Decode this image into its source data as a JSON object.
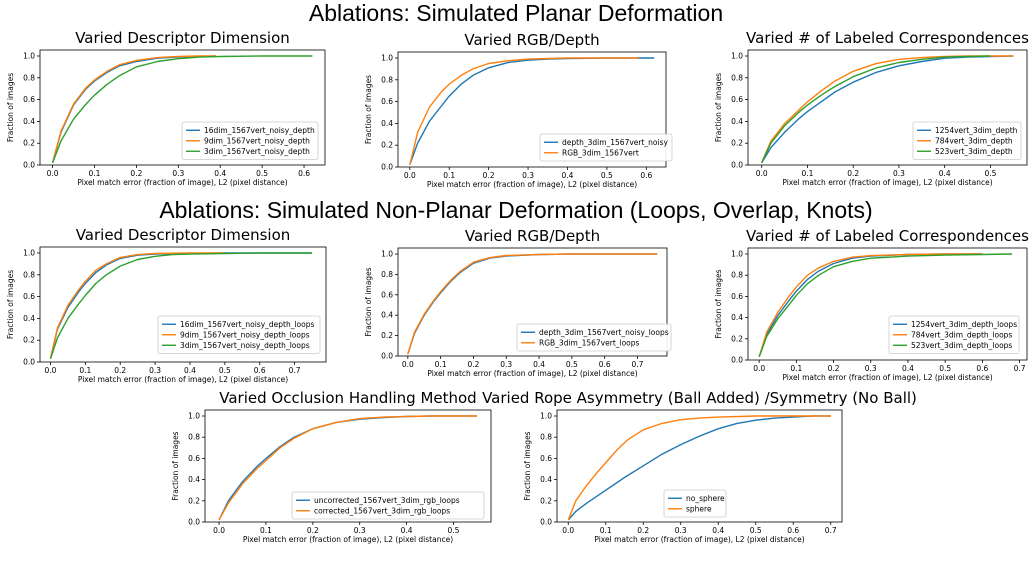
{
  "section_titles": [
    "Ablations: Simulated Planar Deformation",
    "Ablations: Simulated Non-Planar Deformation (Loops, Overlap, Knots)"
  ],
  "colors": {
    "blue": "#1f77b4",
    "orange": "#ff7f0e",
    "green": "#2ca02c"
  },
  "chart_data": [
    {
      "type": "line",
      "title": "Varied Descriptor Dimension",
      "xlabel": "Pixel match error (fraction of image), L2 (pixel distance)",
      "ylabel": "Fraction of images",
      "xlim": [
        -0.03,
        0.65
      ],
      "ylim": [
        0,
        1.0
      ],
      "xticks": [
        0.0,
        0.1,
        0.2,
        0.3,
        0.4,
        0.5,
        0.6
      ],
      "yticks": [
        0.0,
        0.2,
        0.4,
        0.6,
        0.8,
        1.0
      ],
      "legend": "lower-right",
      "series": [
        {
          "name": "16dim_1567vert_noisy_depth",
          "color": "blue",
          "x": [
            0,
            0.02,
            0.05,
            0.08,
            0.1,
            0.13,
            0.16,
            0.2,
            0.25,
            0.3,
            0.35,
            0.39
          ],
          "y": [
            0.02,
            0.3,
            0.55,
            0.7,
            0.77,
            0.85,
            0.91,
            0.95,
            0.98,
            0.99,
            0.995,
            1.0
          ]
        },
        {
          "name": "9dim_1567vert_noisy_depth",
          "color": "orange",
          "x": [
            0,
            0.02,
            0.05,
            0.08,
            0.1,
            0.13,
            0.16,
            0.2,
            0.25,
            0.3,
            0.35,
            0.39
          ],
          "y": [
            0.02,
            0.31,
            0.56,
            0.71,
            0.78,
            0.86,
            0.92,
            0.96,
            0.985,
            0.995,
            1.0,
            1.0
          ]
        },
        {
          "name": "3dim_1567vert_noisy_depth",
          "color": "green",
          "x": [
            0,
            0.02,
            0.05,
            0.08,
            0.1,
            0.13,
            0.16,
            0.2,
            0.25,
            0.3,
            0.35,
            0.4,
            0.5,
            0.62
          ],
          "y": [
            0.02,
            0.22,
            0.42,
            0.56,
            0.64,
            0.74,
            0.82,
            0.9,
            0.95,
            0.975,
            0.99,
            0.995,
            1.0,
            1.0
          ]
        }
      ]
    },
    {
      "type": "line",
      "title": "Varied RGB/Depth",
      "xlabel": "Pixel match error (fraction of image), L2 (pixel distance)",
      "ylabel": "Fraction of images",
      "xlim": [
        -0.03,
        0.65
      ],
      "ylim": [
        0,
        1.0
      ],
      "xticks": [
        0.0,
        0.1,
        0.2,
        0.3,
        0.4,
        0.5,
        0.6
      ],
      "yticks": [
        0.0,
        0.2,
        0.4,
        0.6,
        0.8,
        1.0
      ],
      "legend": "lower-right",
      "series": [
        {
          "name": "depth_3dim_1567vert_noisy",
          "color": "blue",
          "x": [
            0,
            0.02,
            0.05,
            0.08,
            0.1,
            0.13,
            0.16,
            0.2,
            0.25,
            0.3,
            0.35,
            0.4,
            0.5,
            0.62
          ],
          "y": [
            0.02,
            0.22,
            0.42,
            0.56,
            0.65,
            0.76,
            0.84,
            0.91,
            0.96,
            0.98,
            0.99,
            0.995,
            1.0,
            1.0
          ]
        },
        {
          "name": "RGB_3dim_1567vert",
          "color": "orange",
          "x": [
            0,
            0.02,
            0.05,
            0.08,
            0.1,
            0.13,
            0.16,
            0.2,
            0.25,
            0.3,
            0.35,
            0.4,
            0.5,
            0.58
          ],
          "y": [
            0.02,
            0.32,
            0.55,
            0.69,
            0.76,
            0.84,
            0.9,
            0.95,
            0.975,
            0.99,
            0.995,
            1.0,
            1.0,
            1.0
          ]
        }
      ]
    },
    {
      "type": "line",
      "title": "Varied # of Labeled Correspondences",
      "xlabel": "Pixel match error (fraction of image), L2 (pixel distance)",
      "ylabel": "Fraction of images",
      "xlim": [
        -0.03,
        0.58
      ],
      "ylim": [
        0,
        1.0
      ],
      "xticks": [
        0.0,
        0.1,
        0.2,
        0.3,
        0.4,
        0.5
      ],
      "yticks": [
        0.0,
        0.2,
        0.4,
        0.6,
        0.8,
        1.0
      ],
      "legend": "lower-right",
      "series": [
        {
          "name": "1254vert_3dim_depth",
          "color": "blue",
          "x": [
            0,
            0.02,
            0.05,
            0.08,
            0.1,
            0.13,
            0.16,
            0.2,
            0.25,
            0.3,
            0.35,
            0.4,
            0.45,
            0.5,
            0.55
          ],
          "y": [
            0.02,
            0.16,
            0.3,
            0.42,
            0.49,
            0.58,
            0.67,
            0.76,
            0.85,
            0.91,
            0.95,
            0.98,
            0.99,
            0.995,
            1.0
          ]
        },
        {
          "name": "784vert_3dim_depth",
          "color": "orange",
          "x": [
            0,
            0.02,
            0.05,
            0.08,
            0.1,
            0.13,
            0.16,
            0.2,
            0.25,
            0.3,
            0.35,
            0.4,
            0.45,
            0.5,
            0.55
          ],
          "y": [
            0.02,
            0.22,
            0.38,
            0.5,
            0.58,
            0.68,
            0.77,
            0.86,
            0.93,
            0.97,
            0.985,
            0.995,
            1.0,
            1.0,
            1.0
          ]
        },
        {
          "name": "523vert_3dim_depth",
          "color": "green",
          "x": [
            0,
            0.02,
            0.05,
            0.08,
            0.1,
            0.13,
            0.16,
            0.2,
            0.25,
            0.3,
            0.35,
            0.4,
            0.45,
            0.5
          ],
          "y": [
            0.02,
            0.2,
            0.36,
            0.48,
            0.55,
            0.64,
            0.72,
            0.81,
            0.89,
            0.94,
            0.97,
            0.99,
            0.995,
            1.0
          ]
        }
      ]
    },
    {
      "type": "line",
      "title": "Varied Descriptor Dimension",
      "xlabel": "Pixel match error (fraction of image), L2 (pixel distance)",
      "ylabel": "Fraction of images",
      "xlim": [
        -0.03,
        0.79
      ],
      "ylim": [
        0,
        1.0
      ],
      "xticks": [
        0.0,
        0.1,
        0.2,
        0.3,
        0.4,
        0.5,
        0.6,
        0.7
      ],
      "yticks": [
        0.0,
        0.2,
        0.4,
        0.6,
        0.8,
        1.0
      ],
      "legend": "lower-right",
      "series": [
        {
          "name": "16dim_1567vert_noisy_depth_loops",
          "color": "blue",
          "x": [
            0,
            0.02,
            0.05,
            0.08,
            0.1,
            0.13,
            0.16,
            0.2,
            0.25,
            0.3,
            0.4,
            0.5,
            0.6,
            0.75
          ],
          "y": [
            0.03,
            0.3,
            0.5,
            0.64,
            0.72,
            0.82,
            0.89,
            0.95,
            0.98,
            0.99,
            0.995,
            1.0,
            1.0,
            1.0
          ]
        },
        {
          "name": "9dim_1567vert_noisy_depth_loops",
          "color": "orange",
          "x": [
            0,
            0.02,
            0.05,
            0.08,
            0.1,
            0.13,
            0.16,
            0.2,
            0.25,
            0.3,
            0.4,
            0.5
          ],
          "y": [
            0.03,
            0.31,
            0.52,
            0.66,
            0.74,
            0.84,
            0.9,
            0.96,
            0.985,
            0.995,
            1.0,
            1.0
          ]
        },
        {
          "name": "3dim_1567vert_noisy_depth_loops",
          "color": "green",
          "x": [
            0,
            0.02,
            0.05,
            0.08,
            0.1,
            0.13,
            0.16,
            0.2,
            0.25,
            0.3,
            0.35,
            0.4,
            0.5,
            0.6,
            0.75
          ],
          "y": [
            0.03,
            0.22,
            0.4,
            0.53,
            0.61,
            0.72,
            0.8,
            0.88,
            0.94,
            0.97,
            0.985,
            0.99,
            0.995,
            1.0,
            1.0
          ]
        }
      ]
    },
    {
      "type": "line",
      "title": "Varied RGB/Depth",
      "xlabel": "Pixel match error (fraction of image), L2 (pixel distance)",
      "ylabel": "Fraction of images",
      "xlim": [
        -0.03,
        0.79
      ],
      "ylim": [
        0,
        1.0
      ],
      "xticks": [
        0.0,
        0.1,
        0.2,
        0.3,
        0.4,
        0.5,
        0.6,
        0.7
      ],
      "yticks": [
        0.0,
        0.2,
        0.4,
        0.6,
        0.8,
        1.0
      ],
      "legend": "lower-right",
      "series": [
        {
          "name": "depth_3dim_1567vert_noisy_loops",
          "color": "blue",
          "x": [
            0,
            0.02,
            0.05,
            0.08,
            0.1,
            0.13,
            0.16,
            0.2,
            0.25,
            0.3,
            0.4,
            0.5,
            0.6,
            0.76
          ],
          "y": [
            0.02,
            0.22,
            0.4,
            0.54,
            0.62,
            0.73,
            0.82,
            0.91,
            0.96,
            0.98,
            0.995,
            1.0,
            1.0,
            1.0
          ]
        },
        {
          "name": "RGB_3dim_1567vert_loops",
          "color": "orange",
          "x": [
            0,
            0.02,
            0.05,
            0.08,
            0.1,
            0.13,
            0.16,
            0.2,
            0.25,
            0.3,
            0.4,
            0.5,
            0.6,
            0.76
          ],
          "y": [
            0.02,
            0.23,
            0.41,
            0.55,
            0.63,
            0.74,
            0.83,
            0.92,
            0.965,
            0.985,
            0.995,
            1.0,
            1.0,
            1.0
          ]
        }
      ]
    },
    {
      "type": "line",
      "title": "Varied # of Labeled Correspondences",
      "xlabel": "Pixel match error (fraction of image), L2 (pixel distance)",
      "ylabel": "Fraction of images",
      "xlim": [
        -0.03,
        0.72
      ],
      "ylim": [
        0,
        1.0
      ],
      "xticks": [
        0.0,
        0.1,
        0.2,
        0.3,
        0.4,
        0.5,
        0.6,
        0.7
      ],
      "yticks": [
        0.0,
        0.2,
        0.4,
        0.6,
        0.8,
        1.0
      ],
      "legend": "lower-right",
      "series": [
        {
          "name": "1254vert_3dim_depth_loops",
          "color": "blue",
          "x": [
            0,
            0.02,
            0.05,
            0.08,
            0.1,
            0.13,
            0.16,
            0.2,
            0.25,
            0.3,
            0.4,
            0.5,
            0.6
          ],
          "y": [
            0.03,
            0.24,
            0.42,
            0.56,
            0.65,
            0.76,
            0.84,
            0.91,
            0.96,
            0.98,
            0.995,
            1.0,
            1.0
          ]
        },
        {
          "name": "784vert_3dim_depth_loops",
          "color": "orange",
          "x": [
            0,
            0.02,
            0.05,
            0.08,
            0.1,
            0.13,
            0.16,
            0.2,
            0.25,
            0.3,
            0.4,
            0.5,
            0.6
          ],
          "y": [
            0.03,
            0.26,
            0.45,
            0.6,
            0.69,
            0.8,
            0.87,
            0.93,
            0.97,
            0.985,
            0.995,
            1.0,
            1.0
          ]
        },
        {
          "name": "523vert_3dim_depth_loops",
          "color": "green",
          "x": [
            0,
            0.02,
            0.05,
            0.08,
            0.1,
            0.13,
            0.16,
            0.2,
            0.25,
            0.3,
            0.4,
            0.5,
            0.6,
            0.68
          ],
          "y": [
            0.03,
            0.22,
            0.39,
            0.52,
            0.61,
            0.72,
            0.8,
            0.88,
            0.93,
            0.96,
            0.98,
            0.99,
            0.995,
            1.0
          ]
        }
      ]
    },
    {
      "type": "line",
      "title": "Varied Occlusion Handling Method",
      "xlabel": "Pixel match error (fraction of image), L2 (pixel distance)",
      "ylabel": "Fraction of images",
      "xlim": [
        -0.03,
        0.58
      ],
      "ylim": [
        0,
        1.0
      ],
      "xticks": [
        0.0,
        0.1,
        0.2,
        0.3,
        0.4,
        0.5
      ],
      "yticks": [
        0.0,
        0.2,
        0.4,
        0.6,
        0.8,
        1.0
      ],
      "legend": "lower-right",
      "series": [
        {
          "name": "uncorrected_1567vert_3dim_rgb_loops",
          "color": "blue",
          "x": [
            0,
            0.02,
            0.05,
            0.08,
            0.1,
            0.13,
            0.16,
            0.2,
            0.25,
            0.3,
            0.35,
            0.4,
            0.45,
            0.5,
            0.55
          ],
          "y": [
            0.02,
            0.2,
            0.38,
            0.52,
            0.6,
            0.71,
            0.8,
            0.88,
            0.94,
            0.97,
            0.985,
            0.995,
            1.0,
            1.0,
            1.0
          ]
        },
        {
          "name": "corrected_1567vert_3dim_rgb_loops",
          "color": "orange",
          "x": [
            0,
            0.02,
            0.05,
            0.08,
            0.1,
            0.13,
            0.16,
            0.2,
            0.25,
            0.3,
            0.35,
            0.4,
            0.45,
            0.5,
            0.55
          ],
          "y": [
            0.02,
            0.18,
            0.36,
            0.5,
            0.58,
            0.7,
            0.79,
            0.88,
            0.94,
            0.975,
            0.99,
            0.995,
            1.0,
            1.0,
            1.0
          ]
        }
      ]
    },
    {
      "type": "line",
      "title": "Varied Rope Asymmetry (Ball Added) /Symmetry (No Ball)",
      "xlabel": "Pixel match error (fraction of image), L2 (pixel distance)",
      "ylabel": "Fraction of images",
      "xlim": [
        -0.03,
        0.73
      ],
      "ylim": [
        0,
        1.0
      ],
      "xticks": [
        0.0,
        0.1,
        0.2,
        0.3,
        0.4,
        0.5,
        0.6,
        0.7
      ],
      "yticks": [
        0.0,
        0.2,
        0.4,
        0.6,
        0.8,
        1.0
      ],
      "legend": "lower-center",
      "series": [
        {
          "name": "no_sphere",
          "color": "blue",
          "x": [
            0,
            0.02,
            0.05,
            0.1,
            0.15,
            0.2,
            0.25,
            0.3,
            0.35,
            0.4,
            0.45,
            0.5,
            0.55,
            0.6,
            0.65,
            0.7
          ],
          "y": [
            0.02,
            0.1,
            0.18,
            0.3,
            0.42,
            0.53,
            0.64,
            0.73,
            0.81,
            0.88,
            0.93,
            0.96,
            0.98,
            0.99,
            1.0,
            1.0
          ]
        },
        {
          "name": "sphere",
          "color": "orange",
          "x": [
            0,
            0.02,
            0.05,
            0.08,
            0.1,
            0.13,
            0.16,
            0.2,
            0.25,
            0.3,
            0.35,
            0.4,
            0.5,
            0.6,
            0.7
          ],
          "y": [
            0.02,
            0.2,
            0.35,
            0.48,
            0.56,
            0.68,
            0.78,
            0.87,
            0.93,
            0.965,
            0.98,
            0.99,
            1.0,
            1.0,
            1.0
          ]
        }
      ]
    }
  ]
}
